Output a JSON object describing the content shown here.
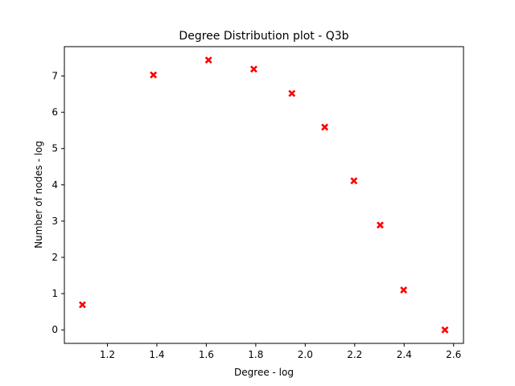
{
  "chart_data": {
    "type": "scatter",
    "title": "Degree Distribution plot  - Q3b",
    "xlabel": "Degree - log",
    "ylabel": "Number of nodes - log",
    "xlim": [
      1.026,
      2.64
    ],
    "ylim": [
      -0.372,
      7.81
    ],
    "xticks": [
      1.2,
      1.4,
      1.6,
      1.8,
      2.0,
      2.2,
      2.4,
      2.6
    ],
    "xtick_labels": [
      "1.2",
      "1.4",
      "1.6",
      "1.8",
      "2.0",
      "2.2",
      "2.4",
      "2.6"
    ],
    "yticks": [
      0,
      1,
      2,
      3,
      4,
      5,
      6,
      7
    ],
    "ytick_labels": [
      "0",
      "1",
      "2",
      "3",
      "4",
      "5",
      "6",
      "7"
    ],
    "grid": false,
    "marker": "X",
    "color": "#ff0000",
    "points": [
      {
        "x": 1.099,
        "y": 0.693
      },
      {
        "x": 1.386,
        "y": 7.03
      },
      {
        "x": 1.609,
        "y": 7.44
      },
      {
        "x": 1.792,
        "y": 7.19
      },
      {
        "x": 1.946,
        "y": 6.52
      },
      {
        "x": 2.079,
        "y": 5.59
      },
      {
        "x": 2.197,
        "y": 4.11
      },
      {
        "x": 2.303,
        "y": 2.89
      },
      {
        "x": 2.398,
        "y": 1.1
      },
      {
        "x": 2.565,
        "y": 0.0
      }
    ]
  }
}
